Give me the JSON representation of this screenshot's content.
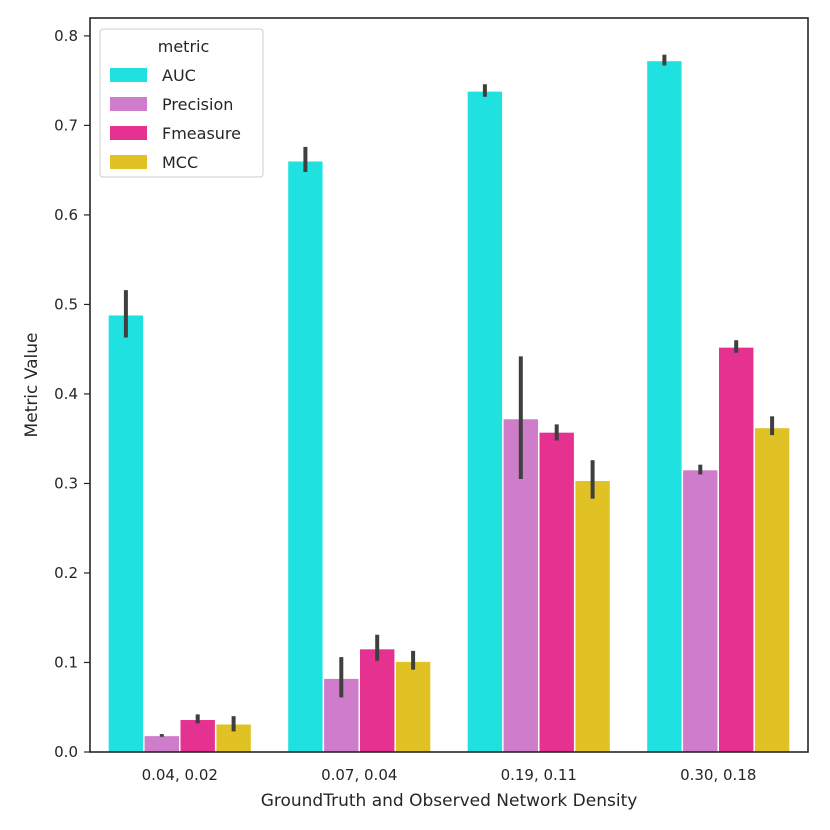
{
  "chart_data": {
    "type": "bar",
    "title": "",
    "xlabel": "GroundTruth and Observed Network Density",
    "ylabel": "Metric Value",
    "ylim": [
      0,
      0.82
    ],
    "yticks": [
      0.0,
      0.1,
      0.2,
      0.3,
      0.4,
      0.5,
      0.6,
      0.7,
      0.8
    ],
    "ytick_labels": [
      "0.0",
      "0.1",
      "0.2",
      "0.3",
      "0.4",
      "0.5",
      "0.6",
      "0.7",
      "0.8"
    ],
    "categories": [
      "0.04, 0.02",
      "0.07, 0.04",
      "0.19, 0.11",
      "0.30, 0.18"
    ],
    "legend": {
      "title": "metric",
      "position": "top-left"
    },
    "grid": false,
    "series": [
      {
        "name": "AUC",
        "color": "#1fe2e0",
        "values": [
          0.488,
          0.66,
          0.738,
          0.772
        ],
        "err_low": [
          0.463,
          0.648,
          0.732,
          0.767
        ],
        "err_high": [
          0.516,
          0.676,
          0.746,
          0.779
        ]
      },
      {
        "name": "Precision",
        "color": "#cf7ccb",
        "values": [
          0.018,
          0.082,
          0.372,
          0.315
        ],
        "err_low": [
          0.017,
          0.061,
          0.305,
          0.31
        ],
        "err_high": [
          0.02,
          0.106,
          0.442,
          0.321
        ]
      },
      {
        "name": "Fmeasure",
        "color": "#e5318f",
        "values": [
          0.036,
          0.115,
          0.357,
          0.452
        ],
        "err_low": [
          0.032,
          0.102,
          0.348,
          0.446
        ],
        "err_high": [
          0.042,
          0.131,
          0.366,
          0.46
        ]
      },
      {
        "name": "MCC",
        "color": "#e0c224",
        "values": [
          0.031,
          0.101,
          0.303,
          0.362
        ],
        "err_low": [
          0.023,
          0.092,
          0.283,
          0.354
        ],
        "err_high": [
          0.04,
          0.113,
          0.326,
          0.375
        ]
      }
    ]
  }
}
